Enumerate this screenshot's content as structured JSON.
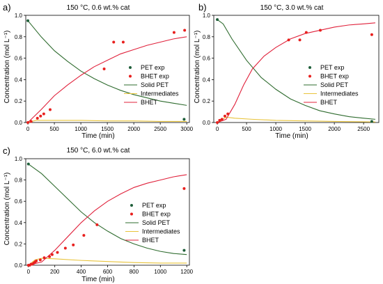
{
  "panels": [
    {
      "label": "a)",
      "title": "150 °C, 0.6 wt.% cat",
      "xlabel": "Time (min)",
      "ylabel": "Concentration (mol L⁻¹)",
      "chart_data": {
        "type": "scatter",
        "xlim": [
          -40,
          3050
        ],
        "ylim": [
          0,
          1.0
        ],
        "xticks": [
          0,
          500,
          1000,
          1500,
          2000,
          2500,
          3000
        ],
        "yticks": [
          0.0,
          0.2,
          0.4,
          0.6,
          0.8,
          1.0
        ],
        "ytick_labels": [
          "0.0",
          "0.2",
          "0.4",
          "0.6",
          "0.8",
          "1.0"
        ],
        "legend_position": "center-right",
        "series": [
          {
            "name": "PET exp",
            "kind": "points",
            "color": "#1f5f3a",
            "x": [
              0,
              2950
            ],
            "y": [
              0.95,
              0.03
            ]
          },
          {
            "name": "BHET exp",
            "kind": "points",
            "color": "#e8201e",
            "x": [
              0,
              60,
              180,
              240,
              300,
              420,
              1440,
              1620,
              1800,
              2760,
              2960
            ],
            "y": [
              0.0,
              0.01,
              0.04,
              0.06,
              0.08,
              0.12,
              0.5,
              0.75,
              0.75,
              0.84,
              0.86
            ]
          },
          {
            "name": "Solid PET",
            "kind": "line",
            "color": "#2e6b2e",
            "x": [
              0,
              250,
              500,
              750,
              1000,
              1250,
              1500,
              1750,
              2000,
              2250,
              2500,
              2750,
              3000
            ],
            "y": [
              0.95,
              0.8,
              0.67,
              0.57,
              0.48,
              0.41,
              0.35,
              0.3,
              0.26,
              0.23,
              0.2,
              0.18,
              0.16
            ]
          },
          {
            "name": "Intermediates",
            "kind": "line",
            "color": "#e8c33a",
            "x": [
              0,
              150,
              500,
              1000,
              1500,
              2000,
              2500,
              3000
            ],
            "y": [
              0.0,
              0.02,
              0.02,
              0.02,
              0.015,
              0.015,
              0.01,
              0.01
            ]
          },
          {
            "name": "BHET",
            "kind": "line",
            "color": "#e0203a",
            "x": [
              0,
              250,
              500,
              750,
              1000,
              1250,
              1500,
              1750,
              2000,
              2250,
              2500,
              2750,
              3000
            ],
            "y": [
              0.0,
              0.12,
              0.25,
              0.35,
              0.44,
              0.52,
              0.58,
              0.64,
              0.68,
              0.72,
              0.75,
              0.78,
              0.8
            ]
          }
        ]
      }
    },
    {
      "label": "b)",
      "title": "150 °C, 3.0 wt.% cat",
      "xlabel": "Time (min)",
      "ylabel": "Concentration (mol L⁻¹)",
      "chart_data": {
        "type": "scatter",
        "xlim": [
          -60,
          2760
        ],
        "ylim": [
          0,
          1.0
        ],
        "xticks": [
          0,
          500,
          1000,
          1500,
          2000,
          2500
        ],
        "yticks": [
          0.0,
          0.2,
          0.4,
          0.6,
          0.8,
          1.0
        ],
        "ytick_labels": [
          "0.0",
          "0.2",
          "0.4",
          "0.6",
          "0.8",
          "1.0"
        ],
        "legend_position": "center-right",
        "series": [
          {
            "name": "PET exp",
            "kind": "points",
            "color": "#1f5f3a",
            "x": [
              0,
              2640
            ],
            "y": [
              0.96,
              0.01
            ]
          },
          {
            "name": "BHET exp",
            "kind": "points",
            "color": "#e8201e",
            "x": [
              0,
              40,
              80,
              130,
              180,
              1220,
              1410,
              1520,
              1760,
              2640
            ],
            "y": [
              0.0,
              0.02,
              0.03,
              0.06,
              0.08,
              0.77,
              0.77,
              0.84,
              0.86,
              0.82
            ]
          },
          {
            "name": "Solid PET",
            "kind": "line",
            "color": "#2e6b2e",
            "x": [
              0,
              100,
              250,
              500,
              750,
              1000,
              1250,
              1500,
              1750,
              2000,
              2250,
              2500,
              2700
            ],
            "y": [
              0.96,
              0.92,
              0.78,
              0.58,
              0.42,
              0.31,
              0.22,
              0.16,
              0.11,
              0.08,
              0.055,
              0.04,
              0.03
            ]
          },
          {
            "name": "Intermediates",
            "kind": "line",
            "color": "#e8c33a",
            "x": [
              0,
              150,
              300,
              600,
              1000,
              1500,
              2000,
              2700
            ],
            "y": [
              0.0,
              0.05,
              0.04,
              0.03,
              0.02,
              0.015,
              0.01,
              0.005
            ]
          },
          {
            "name": "BHET",
            "kind": "line",
            "color": "#e0203a",
            "x": [
              0,
              150,
              300,
              450,
              600,
              800,
              1000,
              1250,
              1500,
              1750,
              2000,
              2250,
              2500,
              2700
            ],
            "y": [
              0.0,
              0.03,
              0.17,
              0.35,
              0.5,
              0.62,
              0.7,
              0.78,
              0.83,
              0.86,
              0.89,
              0.91,
              0.92,
              0.93
            ]
          }
        ]
      }
    },
    {
      "label": "c)",
      "title": "150 °C, 6.0 wt.% cat",
      "xlabel": "Time (min)",
      "ylabel": "Concentration (mol L⁻¹)",
      "chart_data": {
        "type": "scatter",
        "xlim": [
          -20,
          1220
        ],
        "ylim": [
          0,
          1.0
        ],
        "xticks": [
          0,
          200,
          400,
          600,
          800,
          1000,
          1200
        ],
        "yticks": [
          0.0,
          0.2,
          0.4,
          0.6,
          0.8,
          1.0
        ],
        "ytick_labels": [
          "0.0",
          "0.2",
          "0.4",
          "0.6",
          "0.8",
          "1.0"
        ],
        "legend_position": "center-right",
        "series": [
          {
            "name": "PET exp",
            "kind": "points",
            "color": "#1f5f3a",
            "x": [
              0,
              1180
            ],
            "y": [
              0.95,
              0.14
            ]
          },
          {
            "name": "BHET exp",
            "kind": "points",
            "color": "#e8201e",
            "x": [
              0,
              10,
              20,
              30,
              40,
              50,
              60,
              90,
              120,
              160,
              180,
              220,
              280,
              340,
              420,
              520,
              1180
            ],
            "y": [
              0.0,
              0.0,
              0.01,
              0.01,
              0.02,
              0.03,
              0.04,
              0.05,
              0.07,
              0.08,
              0.1,
              0.12,
              0.16,
              0.19,
              0.28,
              0.38,
              0.72
            ]
          },
          {
            "name": "Solid PET",
            "kind": "line",
            "color": "#2e6b2e",
            "x": [
              0,
              100,
              200,
              300,
              400,
              500,
              600,
              700,
              800,
              900,
              1000,
              1100,
              1200
            ],
            "y": [
              0.95,
              0.86,
              0.74,
              0.62,
              0.5,
              0.4,
              0.32,
              0.25,
              0.2,
              0.16,
              0.13,
              0.11,
              0.1
            ]
          },
          {
            "name": "Intermediates",
            "kind": "line",
            "color": "#e8c33a",
            "x": [
              0,
              50,
              100,
              200,
              400,
              600,
              800,
              1000,
              1200
            ],
            "y": [
              0.0,
              0.05,
              0.065,
              0.06,
              0.045,
              0.035,
              0.025,
              0.02,
              0.02
            ]
          },
          {
            "name": "BHET",
            "kind": "line",
            "color": "#e0203a",
            "x": [
              0,
              100,
              200,
              300,
              400,
              500,
              600,
              700,
              800,
              900,
              1000,
              1100,
              1200
            ],
            "y": [
              0.0,
              0.03,
              0.14,
              0.27,
              0.4,
              0.51,
              0.6,
              0.67,
              0.73,
              0.77,
              0.8,
              0.83,
              0.85
            ]
          }
        ]
      }
    }
  ]
}
